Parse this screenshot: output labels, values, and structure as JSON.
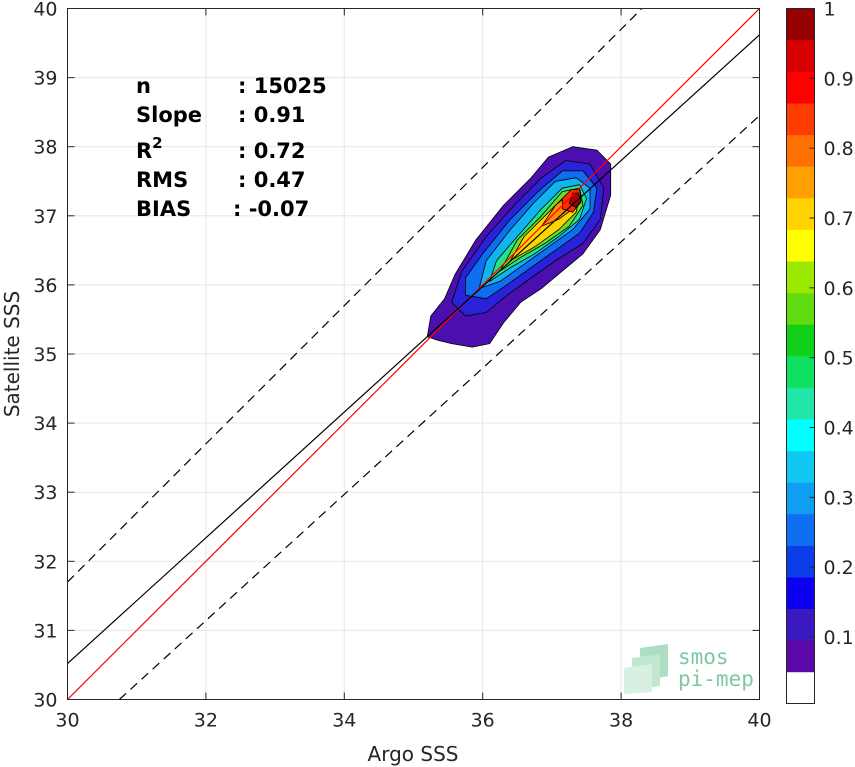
{
  "chart_data": {
    "type": "heatmap",
    "subtype": "2D density contour scatter comparison",
    "xlabel": "Argo SSS",
    "ylabel": "Satellite SSS",
    "xlim": [
      30,
      40
    ],
    "ylim": [
      30,
      40
    ],
    "xticks": [
      "30",
      "32",
      "34",
      "36",
      "38",
      "40"
    ],
    "yticks": [
      "30",
      "31",
      "32",
      "33",
      "34",
      "35",
      "36",
      "37",
      "38",
      "39",
      "40"
    ],
    "grid": true,
    "stats": [
      {
        "label": "n",
        "value": ": 15025"
      },
      {
        "label": "Slope",
        "value": ": 0.91"
      },
      {
        "label": "R",
        "sup": "2",
        "value": ": 0.72"
      },
      {
        "label": "RMS",
        "value": ": 0.47"
      },
      {
        "label": "BIAS",
        "value": ": -0.07"
      }
    ],
    "lines": {
      "identity": {
        "color": "#ff0000",
        "style": "solid",
        "points": [
          [
            30,
            30
          ],
          [
            40,
            40
          ]
        ]
      },
      "regression": {
        "color": "#000000",
        "style": "solid",
        "points": [
          [
            30,
            30.52
          ],
          [
            40,
            39.62
          ]
        ]
      },
      "upper_bound": {
        "color": "#000000",
        "style": "dashed",
        "points": [
          [
            30,
            31.7
          ],
          [
            40,
            41.7
          ]
        ]
      },
      "lower_bound": {
        "color": "#000000",
        "style": "dashed",
        "points": [
          [
            30.75,
            30
          ],
          [
            40,
            38.45
          ]
        ]
      }
    },
    "density_peak": {
      "x": 37.35,
      "y": 37.25
    },
    "contours": [
      {
        "level": 0.05,
        "color": "#4b0fb0",
        "polygon": [
          [
            35.2,
            35.25
          ],
          [
            35.35,
            35.2
          ],
          [
            35.55,
            35.15
          ],
          [
            35.85,
            35.1
          ],
          [
            36.1,
            35.15
          ],
          [
            36.3,
            35.45
          ],
          [
            36.55,
            35.75
          ],
          [
            36.85,
            35.95
          ],
          [
            37.15,
            36.2
          ],
          [
            37.45,
            36.45
          ],
          [
            37.7,
            36.8
          ],
          [
            37.85,
            37.3
          ],
          [
            37.85,
            37.75
          ],
          [
            37.65,
            37.95
          ],
          [
            37.3,
            38.0
          ],
          [
            36.95,
            37.85
          ],
          [
            36.7,
            37.55
          ],
          [
            36.3,
            37.15
          ],
          [
            35.9,
            36.65
          ],
          [
            35.6,
            36.15
          ],
          [
            35.45,
            35.8
          ],
          [
            35.25,
            35.55
          ],
          [
            35.2,
            35.25
          ]
        ]
      },
      {
        "level": 0.15,
        "color": "#2a22d8",
        "polygon": [
          [
            35.55,
            35.75
          ],
          [
            35.75,
            35.55
          ],
          [
            36.05,
            35.6
          ],
          [
            36.35,
            35.85
          ],
          [
            36.7,
            36.1
          ],
          [
            37.05,
            36.35
          ],
          [
            37.45,
            36.6
          ],
          [
            37.7,
            36.95
          ],
          [
            37.75,
            37.4
          ],
          [
            37.55,
            37.75
          ],
          [
            37.2,
            37.8
          ],
          [
            36.85,
            37.55
          ],
          [
            36.5,
            37.2
          ],
          [
            36.05,
            36.7
          ],
          [
            35.7,
            36.2
          ],
          [
            35.55,
            35.75
          ]
        ]
      },
      {
        "level": 0.25,
        "color": "#0d6ef0",
        "polygon": [
          [
            35.75,
            35.85
          ],
          [
            36.05,
            35.8
          ],
          [
            36.35,
            36.0
          ],
          [
            36.7,
            36.25
          ],
          [
            37.05,
            36.5
          ],
          [
            37.4,
            36.75
          ],
          [
            37.6,
            37.05
          ],
          [
            37.65,
            37.4
          ],
          [
            37.45,
            37.65
          ],
          [
            37.15,
            37.65
          ],
          [
            36.8,
            37.35
          ],
          [
            36.4,
            36.95
          ],
          [
            36.0,
            36.45
          ],
          [
            35.75,
            36.1
          ],
          [
            35.75,
            35.85
          ]
        ]
      },
      {
        "level": 0.35,
        "color": "#10b4f0",
        "polygon": [
          [
            35.95,
            35.95
          ],
          [
            36.25,
            36.05
          ],
          [
            36.6,
            36.3
          ],
          [
            36.95,
            36.55
          ],
          [
            37.3,
            36.8
          ],
          [
            37.55,
            37.1
          ],
          [
            37.55,
            37.4
          ],
          [
            37.35,
            37.55
          ],
          [
            37.05,
            37.5
          ],
          [
            36.75,
            37.2
          ],
          [
            36.4,
            36.8
          ],
          [
            36.05,
            36.35
          ],
          [
            35.95,
            35.95
          ]
        ]
      },
      {
        "level": 0.45,
        "color": "#20e58a",
        "polygon": [
          [
            36.1,
            36.05
          ],
          [
            36.4,
            36.25
          ],
          [
            36.75,
            36.45
          ],
          [
            37.1,
            36.7
          ],
          [
            37.4,
            36.95
          ],
          [
            37.5,
            37.25
          ],
          [
            37.4,
            37.45
          ],
          [
            37.15,
            37.4
          ],
          [
            36.85,
            37.1
          ],
          [
            36.5,
            36.7
          ],
          [
            36.2,
            36.35
          ],
          [
            36.1,
            36.05
          ]
        ]
      },
      {
        "level": 0.55,
        "color": "#6fe020",
        "polygon": [
          [
            36.25,
            36.2
          ],
          [
            36.55,
            36.4
          ],
          [
            36.9,
            36.6
          ],
          [
            37.25,
            36.85
          ],
          [
            37.45,
            37.15
          ],
          [
            37.4,
            37.4
          ],
          [
            37.15,
            37.35
          ],
          [
            36.85,
            37.0
          ],
          [
            36.5,
            36.65
          ],
          [
            36.25,
            36.2
          ]
        ]
      },
      {
        "level": 0.65,
        "color": "#ffd400",
        "polygon": [
          [
            36.4,
            36.35
          ],
          [
            36.75,
            36.55
          ],
          [
            37.1,
            36.8
          ],
          [
            37.35,
            37.05
          ],
          [
            37.4,
            37.3
          ],
          [
            37.2,
            37.3
          ],
          [
            36.9,
            37.0
          ],
          [
            36.6,
            36.7
          ],
          [
            36.4,
            36.35
          ]
        ]
      },
      {
        "level": 0.75,
        "color": "#ff8c00",
        "polygon": [
          [
            36.85,
            36.85
          ],
          [
            37.1,
            36.95
          ],
          [
            37.3,
            37.1
          ],
          [
            37.38,
            37.3
          ],
          [
            37.25,
            37.32
          ],
          [
            37.05,
            37.15
          ],
          [
            36.85,
            36.85
          ]
        ]
      },
      {
        "level": 0.85,
        "color": "#ff2b00",
        "polygon": [
          [
            37.15,
            37.1
          ],
          [
            37.3,
            37.05
          ],
          [
            37.42,
            37.2
          ],
          [
            37.4,
            37.38
          ],
          [
            37.28,
            37.38
          ],
          [
            37.15,
            37.25
          ],
          [
            37.15,
            37.1
          ]
        ]
      },
      {
        "level": 0.95,
        "color": "#a80000",
        "polygon": [
          [
            37.25,
            37.18
          ],
          [
            37.35,
            37.12
          ],
          [
            37.42,
            37.22
          ],
          [
            37.38,
            37.33
          ],
          [
            37.3,
            37.33
          ],
          [
            37.25,
            37.18
          ]
        ]
      }
    ],
    "colorbar": {
      "min": 0,
      "max": 1,
      "ticks": [
        "0.1",
        "0.2",
        "0.3",
        "0.4",
        "0.5",
        "0.6",
        "0.7",
        "0.8",
        "0.9",
        "1"
      ],
      "bands": [
        "#ffffff",
        "#5a08a8",
        "#3a1ac0",
        "#0c00f0",
        "#0a3fe8",
        "#0e6ff0",
        "#109ff0",
        "#10c8f2",
        "#00ffff",
        "#22e6a8",
        "#10e060",
        "#10d01a",
        "#60dc10",
        "#9be800",
        "#ffff00",
        "#ffd200",
        "#ffa000",
        "#ff7000",
        "#ff3c00",
        "#ff0000",
        "#d80000",
        "#960000"
      ]
    }
  },
  "logo": {
    "line1": "smos",
    "line2": "pi-mep"
  },
  "colors": {
    "axis": "#262626",
    "grid": "#e6e6e6",
    "identity_line": "#ff0000"
  }
}
